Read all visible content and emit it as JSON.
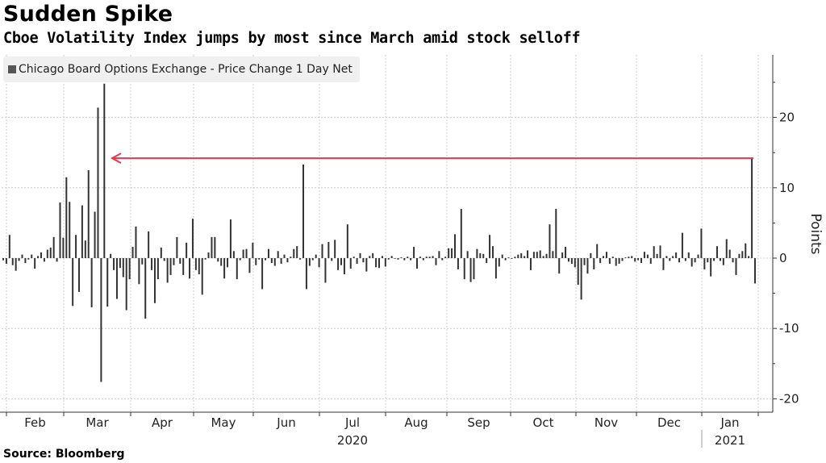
{
  "header": {
    "title": "Sudden Spike",
    "subtitle": "Cboe Volatility Index jumps by most since March amid stock selloff"
  },
  "source": "Source: Bloomberg",
  "colors": {
    "bar": "#333333",
    "arrow": "#e8364f",
    "grid": "#cccccc",
    "axis": "#333333"
  },
  "chart_data": {
    "type": "bar",
    "title": "Sudden Spike",
    "subtitle": "Cboe Volatility Index jumps by most since March amid stock selloff",
    "legend": [
      {
        "name": "Chicago Board Options Exchange - Price Change 1 Day Net",
        "placement": "top-left"
      }
    ],
    "xlabel": "",
    "ylabel": "Points",
    "ylim": [
      -22,
      29
    ],
    "yticks": [
      20,
      10,
      0,
      -10,
      -20
    ],
    "ytick_labels": [
      "20",
      "10",
      "0",
      "-10",
      "-20"
    ],
    "grid": true,
    "x_month_labels": [
      "Feb",
      "Mar",
      "Apr",
      "May",
      "Jun",
      "Jul",
      "Aug",
      "Sep",
      "Oct",
      "Nov",
      "Dec",
      "Jan"
    ],
    "x_year_labels": [
      {
        "label": "2020",
        "under": "Jul"
      },
      {
        "label": "2021",
        "under": "Jan"
      }
    ],
    "annotation": {
      "type": "arrow",
      "from": "last spike",
      "to": "early March",
      "level": 14.2,
      "text": ""
    },
    "series": [
      {
        "name": "Chicago Board Options Exchange - Price Change 1 Day Net",
        "values": [
          -0.3,
          -0.8,
          3.3,
          -1.0,
          -1.8,
          -0.4,
          0.5,
          -0.7,
          -0.2,
          0.5,
          -1.5,
          0.3,
          0.8,
          -0.5,
          1.2,
          1.5,
          3.0,
          -0.5,
          7.9,
          2.9,
          11.5,
          8.0,
          -6.8,
          3.3,
          -4.8,
          7.5,
          2.5,
          12.5,
          -7.0,
          6.6,
          21.4,
          -17.6,
          24.8,
          -6.9,
          0.6,
          -1.7,
          -5.8,
          -1.4,
          -2.7,
          -7.4,
          -3.0,
          1.6,
          4.5,
          -3.7,
          -0.9,
          -8.6,
          3.8,
          -1.7,
          -6.4,
          -3.0,
          1.5,
          -0.4,
          -3.5,
          -2.4,
          -1.0,
          3.0,
          -0.8,
          -2.4,
          2.2,
          -2.9,
          5.6,
          -1.7,
          -2.3,
          -5.2,
          -0.2,
          0.8,
          3.0,
          3.0,
          -0.5,
          -1.1,
          -2.9,
          -1.3,
          5.5,
          1.0,
          -3.0,
          -0.3,
          1.2,
          1.3,
          -2.1,
          2.2,
          -1.0,
          -0.2,
          -4.4,
          -0.3,
          1.3,
          -0.7,
          -1.1,
          1.0,
          -0.8,
          0.5,
          -0.6,
          0.2,
          1.3,
          1.7,
          -0.2,
          13.3,
          -4.4,
          -1.1,
          -0.3,
          0.5,
          -1.3,
          2.0,
          -3.5,
          2.3,
          -0.4,
          2.6,
          -1.7,
          -1.0,
          -2.3,
          4.8,
          -1.5,
          0.2,
          -0.8,
          0.7,
          -0.6,
          -1.9,
          0.3,
          0.7,
          -1.3,
          -1.4,
          0.3,
          -1.2,
          -0.2,
          0.3,
          -0.1,
          -0.2,
          0.1,
          -0.3,
          0.2,
          -0.3,
          1.6,
          -1.5,
          0.2,
          -0.3,
          0.2,
          0.2,
          0.3,
          -1.0,
          1.0,
          -0.3,
          0.2,
          1.4,
          1.4,
          3.4,
          -1.6,
          7.0,
          -3.0,
          1.0,
          -3.4,
          -3.0,
          1.3,
          0.7,
          0.6,
          -0.7,
          3.3,
          1.7,
          -2.9,
          -1.2,
          0.5,
          -0.3,
          0.1,
          -0.1,
          0.2,
          0.5,
          0.7,
          0.3,
          1.1,
          -1.7,
          0.9,
          0.9,
          1.1,
          0.3,
          0.6,
          4.8,
          1.0,
          7.0,
          -2.2,
          0.8,
          1.6,
          -0.5,
          -0.8,
          -1.3,
          -3.8,
          -5.9,
          -1.0,
          -2.2,
          0.7,
          -1.6,
          2.0,
          -0.7,
          0.3,
          0.9,
          -0.8,
          0.2,
          -1.1,
          -0.8,
          -0.4,
          0.1,
          0.2,
          0.3,
          -0.5,
          -0.3,
          -0.7,
          0.9,
          0.5,
          -0.8,
          1.7,
          0.6,
          1.8,
          -1.7,
          0.3,
          -0.4,
          0.3,
          0.8,
          -0.6,
          3.6,
          -0.4,
          0.8,
          -1.2,
          -0.6,
          0.5,
          4.2,
          -1.6,
          -0.6,
          -2.6,
          -0.4,
          1.7,
          -0.4,
          -1.0,
          2.7,
          1.2,
          -0.6,
          -2.4,
          0.6,
          1.0,
          2.1,
          0.3,
          14.2,
          -3.6
        ]
      }
    ]
  }
}
